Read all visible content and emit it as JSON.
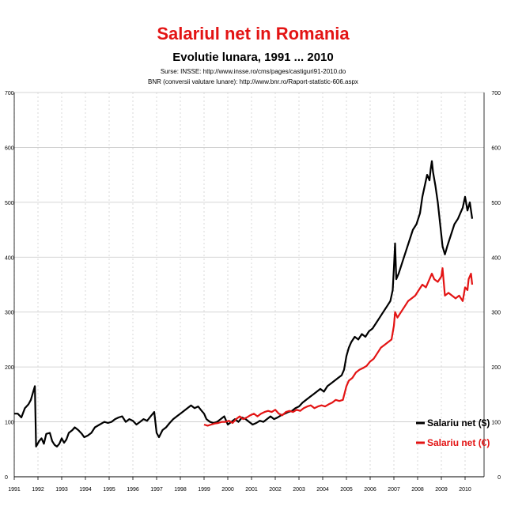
{
  "chart_data": {
    "type": "line",
    "title": "Salariul net in Romania",
    "subtitle": "Evolutie lunara, 1991 ... 2010",
    "source_lines": [
      "Surse: INSSE: http://www.insse.ro/cms/pages/castiguri91-2010.do",
      "BNR (conversii valutare lunare): http://www.bnr.ro/Raport-statistic-606.aspx"
    ],
    "xlim": [
      1991,
      2010.8
    ],
    "ylim": [
      0,
      700
    ],
    "x_ticks": [
      1991,
      1992,
      1993,
      1994,
      1995,
      1996,
      1997,
      1998,
      1999,
      2000,
      2001,
      2002,
      2003,
      2004,
      2005,
      2006,
      2007,
      2008,
      2009,
      2010
    ],
    "y_ticks": [
      0,
      100,
      200,
      300,
      400,
      500,
      600,
      700
    ],
    "grid": true,
    "legend_position": "bottom-right",
    "series": [
      {
        "name": "Salariu net ($)",
        "color": "#000000",
        "points": [
          [
            1991.0,
            115
          ],
          [
            1991.15,
            115
          ],
          [
            1991.3,
            108
          ],
          [
            1991.45,
            125
          ],
          [
            1991.6,
            132
          ],
          [
            1991.7,
            140
          ],
          [
            1991.8,
            155
          ],
          [
            1991.87,
            165
          ],
          [
            1991.92,
            55
          ],
          [
            1992.05,
            65
          ],
          [
            1992.15,
            70
          ],
          [
            1992.25,
            60
          ],
          [
            1992.35,
            78
          ],
          [
            1992.5,
            80
          ],
          [
            1992.6,
            65
          ],
          [
            1992.7,
            58
          ],
          [
            1992.8,
            55
          ],
          [
            1992.9,
            60
          ],
          [
            1993.0,
            70
          ],
          [
            1993.1,
            62
          ],
          [
            1993.2,
            68
          ],
          [
            1993.3,
            80
          ],
          [
            1993.45,
            85
          ],
          [
            1993.55,
            90
          ],
          [
            1993.7,
            85
          ],
          [
            1993.85,
            78
          ],
          [
            1993.95,
            72
          ],
          [
            1994.1,
            75
          ],
          [
            1994.25,
            80
          ],
          [
            1994.4,
            90
          ],
          [
            1994.6,
            95
          ],
          [
            1994.8,
            100
          ],
          [
            1994.95,
            98
          ],
          [
            1995.1,
            100
          ],
          [
            1995.25,
            105
          ],
          [
            1995.4,
            108
          ],
          [
            1995.55,
            110
          ],
          [
            1995.7,
            100
          ],
          [
            1995.85,
            105
          ],
          [
            1996.0,
            102
          ],
          [
            1996.15,
            95
          ],
          [
            1996.3,
            100
          ],
          [
            1996.45,
            105
          ],
          [
            1996.6,
            102
          ],
          [
            1996.75,
            110
          ],
          [
            1996.9,
            118
          ],
          [
            1997.0,
            80
          ],
          [
            1997.1,
            72
          ],
          [
            1997.25,
            85
          ],
          [
            1997.4,
            90
          ],
          [
            1997.55,
            98
          ],
          [
            1997.7,
            105
          ],
          [
            1997.85,
            110
          ],
          [
            1998.0,
            115
          ],
          [
            1998.15,
            120
          ],
          [
            1998.3,
            125
          ],
          [
            1998.45,
            130
          ],
          [
            1998.6,
            125
          ],
          [
            1998.75,
            128
          ],
          [
            1998.9,
            120
          ],
          [
            1999.0,
            115
          ],
          [
            1999.1,
            105
          ],
          [
            1999.25,
            100
          ],
          [
            1999.4,
            98
          ],
          [
            1999.55,
            100
          ],
          [
            1999.7,
            105
          ],
          [
            1999.85,
            110
          ],
          [
            2000.0,
            95
          ],
          [
            2000.15,
            100
          ],
          [
            2000.3,
            105
          ],
          [
            2000.45,
            100
          ],
          [
            2000.6,
            108
          ],
          [
            2000.75,
            105
          ],
          [
            2000.9,
            100
          ],
          [
            2001.05,
            95
          ],
          [
            2001.2,
            98
          ],
          [
            2001.35,
            102
          ],
          [
            2001.5,
            100
          ],
          [
            2001.65,
            105
          ],
          [
            2001.8,
            110
          ],
          [
            2001.95,
            105
          ],
          [
            2002.1,
            108
          ],
          [
            2002.25,
            112
          ],
          [
            2002.4,
            115
          ],
          [
            2002.55,
            118
          ],
          [
            2002.7,
            120
          ],
          [
            2002.85,
            125
          ],
          [
            2003.0,
            128
          ],
          [
            2003.15,
            135
          ],
          [
            2003.3,
            140
          ],
          [
            2003.45,
            145
          ],
          [
            2003.6,
            150
          ],
          [
            2003.75,
            155
          ],
          [
            2003.9,
            160
          ],
          [
            2004.05,
            155
          ],
          [
            2004.2,
            165
          ],
          [
            2004.35,
            170
          ],
          [
            2004.5,
            175
          ],
          [
            2004.65,
            180
          ],
          [
            2004.8,
            185
          ],
          [
            2004.9,
            195
          ],
          [
            2005.0,
            220
          ],
          [
            2005.1,
            235
          ],
          [
            2005.2,
            245
          ],
          [
            2005.35,
            255
          ],
          [
            2005.5,
            250
          ],
          [
            2005.65,
            260
          ],
          [
            2005.8,
            255
          ],
          [
            2005.95,
            265
          ],
          [
            2006.1,
            270
          ],
          [
            2006.25,
            280
          ],
          [
            2006.4,
            290
          ],
          [
            2006.55,
            300
          ],
          [
            2006.7,
            310
          ],
          [
            2006.85,
            320
          ],
          [
            2006.95,
            340
          ],
          [
            2007.0,
            380
          ],
          [
            2007.05,
            425
          ],
          [
            2007.1,
            360
          ],
          [
            2007.2,
            370
          ],
          [
            2007.35,
            390
          ],
          [
            2007.5,
            410
          ],
          [
            2007.65,
            430
          ],
          [
            2007.8,
            450
          ],
          [
            2007.95,
            460
          ],
          [
            2008.1,
            480
          ],
          [
            2008.2,
            510
          ],
          [
            2008.3,
            530
          ],
          [
            2008.4,
            550
          ],
          [
            2008.5,
            540
          ],
          [
            2008.55,
            560
          ],
          [
            2008.6,
            575
          ],
          [
            2008.65,
            555
          ],
          [
            2008.75,
            530
          ],
          [
            2008.85,
            500
          ],
          [
            2008.95,
            460
          ],
          [
            2009.05,
            420
          ],
          [
            2009.15,
            405
          ],
          [
            2009.25,
            420
          ],
          [
            2009.4,
            440
          ],
          [
            2009.55,
            460
          ],
          [
            2009.7,
            470
          ],
          [
            2009.8,
            480
          ],
          [
            2009.9,
            490
          ],
          [
            2010.0,
            510
          ],
          [
            2010.1,
            485
          ],
          [
            2010.2,
            500
          ],
          [
            2010.3,
            470
          ]
        ]
      },
      {
        "name": "Salariu net (€)",
        "color": "#e31414",
        "points": [
          [
            1999.0,
            95
          ],
          [
            1999.15,
            93
          ],
          [
            1999.3,
            95
          ],
          [
            1999.45,
            97
          ],
          [
            1999.6,
            98
          ],
          [
            1999.75,
            100
          ],
          [
            1999.9,
            100
          ],
          [
            2000.05,
            102
          ],
          [
            2000.2,
            98
          ],
          [
            2000.35,
            105
          ],
          [
            2000.5,
            110
          ],
          [
            2000.65,
            105
          ],
          [
            2000.8,
            108
          ],
          [
            2000.95,
            112
          ],
          [
            2001.1,
            115
          ],
          [
            2001.25,
            110
          ],
          [
            2001.4,
            115
          ],
          [
            2001.55,
            118
          ],
          [
            2001.7,
            120
          ],
          [
            2001.85,
            118
          ],
          [
            2002.0,
            122
          ],
          [
            2002.15,
            115
          ],
          [
            2002.3,
            112
          ],
          [
            2002.45,
            118
          ],
          [
            2002.6,
            120
          ],
          [
            2002.75,
            118
          ],
          [
            2002.9,
            122
          ],
          [
            2003.05,
            120
          ],
          [
            2003.2,
            125
          ],
          [
            2003.35,
            128
          ],
          [
            2003.5,
            130
          ],
          [
            2003.65,
            125
          ],
          [
            2003.8,
            128
          ],
          [
            2003.95,
            130
          ],
          [
            2004.1,
            128
          ],
          [
            2004.25,
            132
          ],
          [
            2004.4,
            135
          ],
          [
            2004.55,
            140
          ],
          [
            2004.7,
            138
          ],
          [
            2004.85,
            140
          ],
          [
            2005.0,
            165
          ],
          [
            2005.1,
            175
          ],
          [
            2005.25,
            180
          ],
          [
            2005.4,
            190
          ],
          [
            2005.55,
            195
          ],
          [
            2005.7,
            198
          ],
          [
            2005.85,
            202
          ],
          [
            2006.0,
            210
          ],
          [
            2006.15,
            215
          ],
          [
            2006.3,
            225
          ],
          [
            2006.45,
            235
          ],
          [
            2006.6,
            240
          ],
          [
            2006.75,
            245
          ],
          [
            2006.9,
            250
          ],
          [
            2007.0,
            275
          ],
          [
            2007.05,
            300
          ],
          [
            2007.15,
            290
          ],
          [
            2007.3,
            300
          ],
          [
            2007.45,
            310
          ],
          [
            2007.6,
            320
          ],
          [
            2007.75,
            325
          ],
          [
            2007.9,
            330
          ],
          [
            2008.05,
            340
          ],
          [
            2008.2,
            350
          ],
          [
            2008.35,
            345
          ],
          [
            2008.5,
            360
          ],
          [
            2008.6,
            370
          ],
          [
            2008.7,
            360
          ],
          [
            2008.85,
            355
          ],
          [
            2009.0,
            365
          ],
          [
            2009.05,
            380
          ],
          [
            2009.15,
            330
          ],
          [
            2009.3,
            335
          ],
          [
            2009.45,
            330
          ],
          [
            2009.6,
            325
          ],
          [
            2009.75,
            330
          ],
          [
            2009.9,
            320
          ],
          [
            2010.0,
            345
          ],
          [
            2010.1,
            340
          ],
          [
            2010.15,
            360
          ],
          [
            2010.25,
            370
          ],
          [
            2010.3,
            350
          ]
        ]
      }
    ]
  }
}
